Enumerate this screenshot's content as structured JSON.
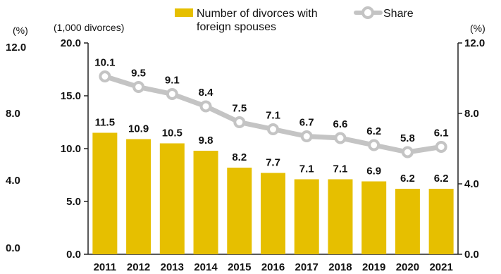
{
  "chart_data": {
    "type": "bar+line",
    "categories": [
      "2011",
      "2012",
      "2013",
      "2014",
      "2015",
      "2016",
      "2017",
      "2018",
      "2019",
      "2020",
      "2021"
    ],
    "series": [
      {
        "name": "Number of divorces with foreign spouses",
        "type": "bar",
        "axis": "left",
        "color": "#e6bf00",
        "values": [
          11.5,
          10.9,
          10.5,
          9.8,
          8.2,
          7.7,
          7.1,
          7.1,
          6.9,
          6.2,
          6.2
        ]
      },
      {
        "name": "Share",
        "type": "line",
        "axis": "right",
        "color": "#c4c4c4",
        "values": [
          10.1,
          9.5,
          9.1,
          8.4,
          7.5,
          7.1,
          6.7,
          6.6,
          6.2,
          5.8,
          6.1
        ]
      }
    ],
    "left_axis": {
      "unit": "(1,000 divorces)",
      "ylim": [
        0,
        20
      ],
      "ticks": [
        "0.0",
        "5.0",
        "10.0",
        "15.0",
        "20.0"
      ]
    },
    "right_axis": {
      "unit": "(%)",
      "ylim": [
        0,
        12
      ],
      "ticks": [
        "0.0",
        "4.0",
        "8.0",
        "12.0"
      ]
    },
    "outer_axis": {
      "unit": "(%)",
      "ticks": [
        "0.0",
        "4.0",
        "8.0",
        "12.0"
      ]
    },
    "legend": {
      "position": "top",
      "bar_label_line1": "Number of divorces with",
      "bar_label_line2": "foreign spouses",
      "line_label": "Share"
    },
    "grid": false
  }
}
